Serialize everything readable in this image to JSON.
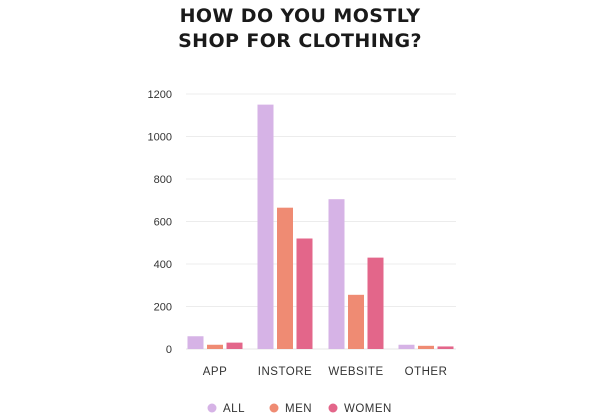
{
  "chart_data": {
    "type": "bar",
    "title_lines": [
      "HOW DO YOU MOSTLY",
      "SHOP FOR CLOTHING?"
    ],
    "categories": [
      "APP",
      "INSTORE",
      "WEBSITE",
      "OTHER"
    ],
    "series": [
      {
        "name": "ALL",
        "color": "#d6b3e6",
        "values": [
          60,
          1150,
          705,
          20
        ]
      },
      {
        "name": "MEN",
        "color": "#ef8b73",
        "values": [
          20,
          665,
          255,
          15
        ]
      },
      {
        "name": "WOMEN",
        "color": "#e3668a",
        "values": [
          30,
          520,
          430,
          12
        ]
      }
    ],
    "ylim": [
      0,
      1200
    ],
    "yticks": [
      0,
      200,
      400,
      600,
      800,
      1000,
      1200
    ],
    "grid": true,
    "legend_position": "bottom-center",
    "xlabel": "",
    "ylabel": ""
  }
}
